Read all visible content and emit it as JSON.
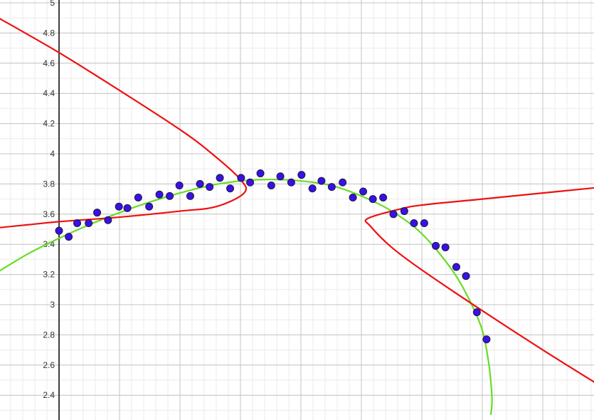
{
  "chart_data": {
    "type": "scatter",
    "title": "",
    "xlabel": "",
    "ylabel": "",
    "grid": true,
    "ylim": [
      2.27,
      5.02
    ],
    "y_ticks": [
      "2.4",
      "2.6",
      "2.8",
      "3",
      "3.2",
      "3.4",
      "3.6",
      "3.8",
      "4",
      "4.2",
      "4.4",
      "4.6",
      "4.8",
      "5"
    ],
    "colors": {
      "points": "#3a10e8",
      "fit_curve": "#66dd22",
      "conic_curve": "#ee1111",
      "grid_major": "#c4c4c4",
      "grid_minor": "#ebebeb",
      "axis": "#000000"
    },
    "series": [
      {
        "kind": "points",
        "x": [
          0.0,
          0.16,
          0.3,
          0.49,
          0.63,
          0.81,
          0.99,
          1.13,
          1.31,
          1.49,
          1.66,
          1.83,
          1.99,
          2.17,
          2.33,
          2.49,
          2.66,
          2.83,
          3.01,
          3.16,
          3.33,
          3.51,
          3.66,
          3.84,
          4.01,
          4.19,
          4.34,
          4.51,
          4.69,
          4.86,
          5.03,
          5.19,
          5.36,
          5.53,
          5.71,
          5.87,
          6.04,
          6.23,
          6.39,
          6.57,
          6.73,
          6.91,
          7.07
        ],
        "y": [
          3.49,
          3.45,
          3.54,
          3.54,
          3.61,
          3.56,
          3.65,
          3.64,
          3.71,
          3.65,
          3.73,
          3.72,
          3.79,
          3.72,
          3.8,
          3.78,
          3.84,
          3.77,
          3.84,
          3.81,
          3.87,
          3.79,
          3.85,
          3.81,
          3.86,
          3.77,
          3.82,
          3.78,
          3.81,
          3.71,
          3.75,
          3.7,
          3.71,
          3.6,
          3.62,
          3.54,
          3.54,
          3.39,
          3.38,
          3.25,
          3.19,
          2.95,
          2.77
        ]
      },
      {
        "kind": "curve",
        "x": [
          -1.0,
          -0.5,
          0.0,
          0.5,
          1.0,
          1.5,
          2.0,
          2.5,
          3.0,
          3.5,
          4.0,
          4.5,
          5.0,
          5.5,
          6.0,
          6.5,
          6.8,
          7.0,
          7.1,
          7.15,
          7.16,
          7.14
        ],
        "y": [
          3.22,
          3.34,
          3.44,
          3.53,
          3.61,
          3.68,
          3.74,
          3.79,
          3.82,
          3.83,
          3.82,
          3.79,
          3.72,
          3.62,
          3.47,
          3.23,
          3.02,
          2.83,
          2.63,
          2.45,
          2.35,
          2.27
        ]
      },
      {
        "kind": "curve",
        "x": [
          -1.0,
          0.0,
          1.0,
          2.0,
          2.5,
          3.0,
          3.06,
          2.6,
          2.0,
          1.0,
          0.0,
          -0.5,
          -1.0
        ],
        "y": [
          4.9,
          4.67,
          4.42,
          4.16,
          4.01,
          3.83,
          3.74,
          3.65,
          3.62,
          3.58,
          3.55,
          3.53,
          3.51
        ]
      },
      {
        "kind": "curve",
        "x": [
          9.0,
          8.0,
          7.0,
          6.0,
          5.5,
          5.15,
          5.1,
          5.6,
          6.0,
          7.0,
          8.0,
          9.0
        ],
        "y": [
          2.45,
          2.7,
          2.96,
          3.23,
          3.38,
          3.52,
          3.57,
          3.63,
          3.66,
          3.7,
          3.74,
          3.78
        ]
      }
    ]
  }
}
